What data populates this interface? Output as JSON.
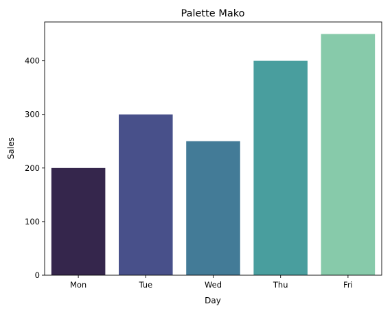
{
  "chart_data": {
    "type": "bar",
    "title": "Palette Mako",
    "xlabel": "Day",
    "ylabel": "Sales",
    "categories": [
      "Mon",
      "Tue",
      "Wed",
      "Thu",
      "Fri"
    ],
    "values": [
      200,
      300,
      250,
      400,
      450
    ],
    "colors": [
      "#35264c",
      "#48508a",
      "#437b97",
      "#499e9e",
      "#87caaa"
    ],
    "ylim": [
      0,
      472.5
    ],
    "yticks": [
      0,
      100,
      200,
      300,
      400
    ],
    "grid": false,
    "legend": "none"
  }
}
